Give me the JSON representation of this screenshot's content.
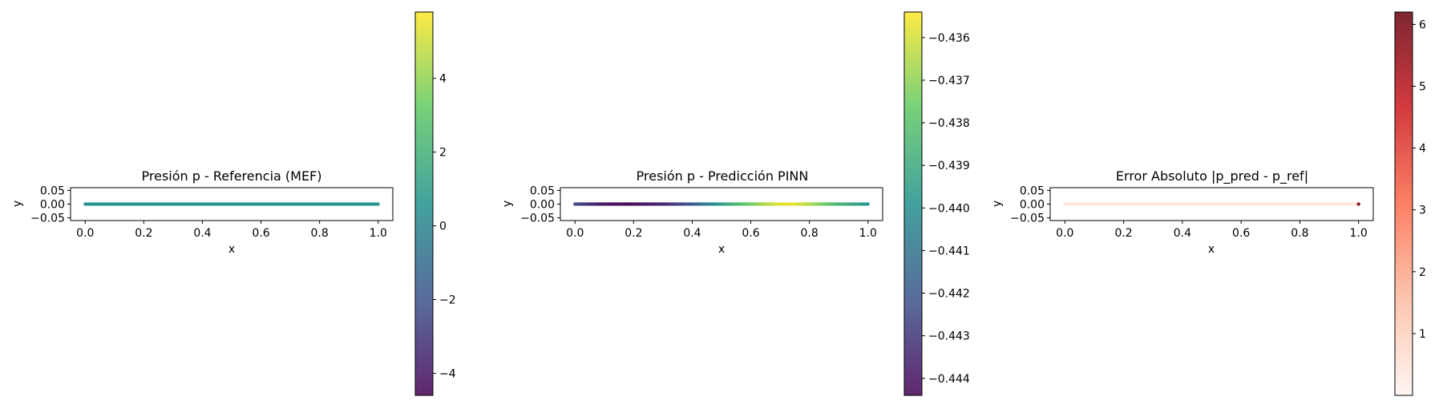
{
  "chart_data": [
    {
      "type": "scatter",
      "title": "Presión p - Referencia (MEF)",
      "xlabel": "x",
      "ylabel": "y",
      "xlim": [
        -0.05,
        1.05
      ],
      "ylim": [
        -0.06,
        0.06
      ],
      "xticks": [
        "0.0",
        "0.2",
        "0.4",
        "0.6",
        "0.8",
        "1.0"
      ],
      "yticks": [
        "0.05",
        "0.00",
        "−0.05"
      ],
      "grid": false,
      "colormap": "viridis",
      "points": {
        "y": 0.0,
        "x_range": [
          0.0,
          1.0
        ],
        "value_approx": 0.5,
        "end_value_approx": 0.8
      },
      "colorbar": {
        "vmin": -4.6,
        "vmax": 5.8,
        "ticks": [
          4,
          2,
          0,
          -2,
          -4
        ],
        "tick_labels": [
          "4",
          "2",
          "0",
          "−2",
          "−4"
        ]
      }
    },
    {
      "type": "scatter",
      "title": "Presión p - Predicción PINN",
      "xlabel": "x",
      "ylabel": "y",
      "xlim": [
        -0.05,
        1.05
      ],
      "ylim": [
        -0.06,
        0.06
      ],
      "xticks": [
        "0.0",
        "0.2",
        "0.4",
        "0.6",
        "0.8",
        "1.0"
      ],
      "yticks": [
        "0.05",
        "0.00",
        "−0.05"
      ],
      "grid": false,
      "colormap": "viridis",
      "points": {
        "y": 0.0,
        "x": [
          0.0,
          0.1,
          0.2,
          0.3,
          0.4,
          0.5,
          0.6,
          0.65,
          0.7,
          0.75,
          0.8,
          0.9,
          1.0
        ],
        "value": [
          -0.4425,
          -0.444,
          -0.4443,
          -0.4435,
          -0.442,
          -0.4395,
          -0.4375,
          -0.4365,
          -0.4358,
          -0.4358,
          -0.4365,
          -0.4385,
          -0.4398
        ]
      },
      "colorbar": {
        "vmin": -0.4444,
        "vmax": -0.4354,
        "ticks": [
          -0.436,
          -0.437,
          -0.438,
          -0.439,
          -0.44,
          -0.441,
          -0.442,
          -0.443,
          -0.444
        ],
        "tick_labels": [
          "−0.436",
          "−0.437",
          "−0.438",
          "−0.439",
          "−0.440",
          "−0.441",
          "−0.442",
          "−0.443",
          "−0.444"
        ]
      }
    },
    {
      "type": "scatter",
      "title": "Error Absoluto |p_pred - p_ref|",
      "xlabel": "x",
      "ylabel": "y",
      "xlim": [
        -0.05,
        1.05
      ],
      "ylim": [
        -0.06,
        0.06
      ],
      "xticks": [
        "0.0",
        "0.2",
        "0.4",
        "0.6",
        "0.8",
        "1.0"
      ],
      "yticks": [
        "0.05",
        "0.00",
        "−0.05"
      ],
      "grid": false,
      "colormap": "Reds",
      "points": {
        "y": 0.0,
        "x_range": [
          0.0,
          1.0
        ],
        "value_approx": 0.4,
        "end_value_approx": 6.0
      },
      "colorbar": {
        "vmin": 0.0,
        "vmax": 6.2,
        "ticks": [
          6,
          5,
          4,
          3,
          2,
          1
        ],
        "tick_labels": [
          "6",
          "5",
          "4",
          "3",
          "2",
          "1"
        ]
      }
    }
  ]
}
